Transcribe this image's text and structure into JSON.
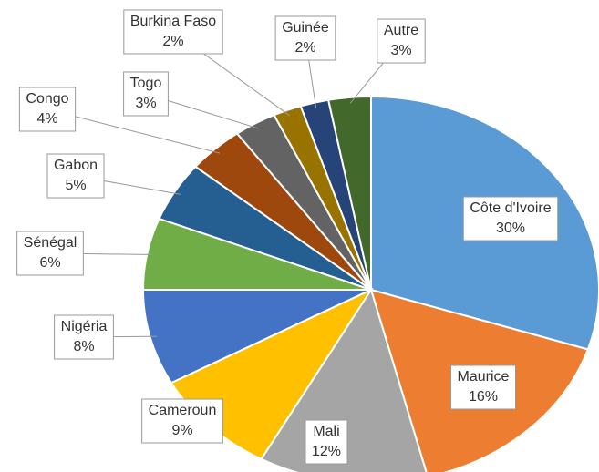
{
  "chart_data": {
    "type": "pie",
    "categories": [
      "Côte d'Ivoire",
      "Maurice",
      "Mali",
      "Cameroun",
      "Nigéria",
      "Sénégal",
      "Gabon",
      "Congo",
      "Togo",
      "Burkina Faso",
      "Guinée",
      "Autre"
    ],
    "values": [
      30,
      16,
      12,
      9,
      8,
      6,
      5,
      4,
      3,
      2,
      2,
      3
    ],
    "value_labels": [
      "30%",
      "16%",
      "12%",
      "9%",
      "8%",
      "6%",
      "5%",
      "4%",
      "3%",
      "2%",
      "2%",
      "3%"
    ],
    "colors": [
      "#5b9bd5",
      "#ed7d31",
      "#a5a5a5",
      "#ffc000",
      "#4472c4",
      "#70ad47",
      "#255e91",
      "#9e480e",
      "#636363",
      "#997300",
      "#264478",
      "#43682b"
    ]
  }
}
